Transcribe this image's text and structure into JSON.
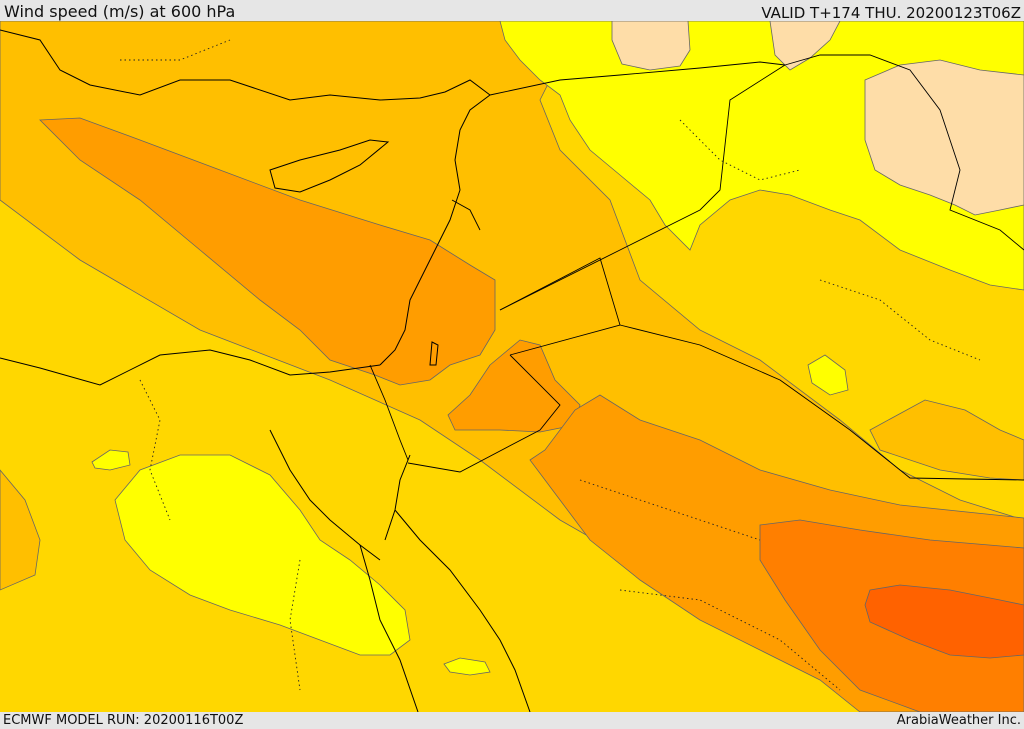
{
  "header": {
    "title": "Wind speed (m/s) at 600 hPa",
    "valid": "VALID T+174 THU. 20200123T06Z"
  },
  "footer": {
    "model_run": "ECMWF MODEL RUN: 20200116T00Z",
    "credit": "ArabiaWeather Inc."
  },
  "colors": {
    "level_1": "#ffff00",
    "level_2": "#ffd700",
    "level_3": "#ffbf00",
    "level_4": "#ff9d00",
    "level_5": "#ff7f00",
    "level_6": "#ff6200",
    "land_light": "#fedda8",
    "coast_line": "#000000",
    "contour_line": "#666666"
  }
}
